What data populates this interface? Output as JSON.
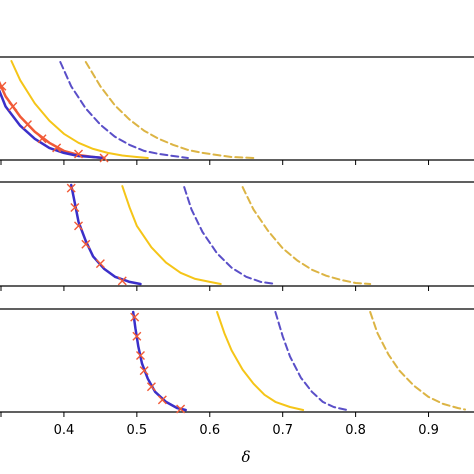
{
  "chart_data": {
    "type": "line",
    "xlabel": "δ",
    "xlim": [
      0.3,
      0.95
    ],
    "x_ticks": [
      "0.4",
      "0.5",
      "0.6",
      "0.7",
      "0.8",
      "0.9"
    ],
    "x_tick_values": [
      0.4,
      0.5,
      0.6,
      0.7,
      0.8,
      0.9
    ],
    "colors": {
      "orange": "#f15a37",
      "blue": "#3b2fc9",
      "yellow": "#f5c518",
      "dashed_blue": "#5a4fc8",
      "dashed_gold": "#dcb444"
    },
    "panels": [
      {
        "ylim": [
          0,
          1
        ],
        "series": [
          {
            "style": "solid",
            "color": "#f15a37",
            "width": 2.5,
            "x": [
              0.3,
              0.31,
              0.32,
              0.34,
              0.36,
              0.38,
              0.4,
              0.42,
              0.44,
              0.455
            ],
            "y": [
              0.97,
              0.78,
              0.62,
              0.42,
              0.27,
              0.16,
              0.08,
              0.04,
              0.02,
              0.01
            ]
          },
          {
            "style": "solid",
            "color": "#3b2fc9",
            "width": 2.5,
            "x": [
              0.3,
              0.31,
              0.32,
              0.34,
              0.36,
              0.38,
              0.4,
              0.42,
              0.44,
              0.455
            ],
            "y": [
              0.93,
              0.7,
              0.52,
              0.33,
              0.2,
              0.11,
              0.06,
              0.03,
              0.02,
              0.01
            ]
          },
          {
            "style": "markers",
            "color": "#f15a37",
            "x": [
              0.3,
              0.315,
              0.33,
              0.35,
              0.37,
              0.39,
              0.42,
              0.455
            ],
            "y": [
              0.95,
              0.72,
              0.52,
              0.34,
              0.2,
              0.11,
              0.05,
              0.01
            ]
          },
          {
            "style": "solid",
            "color": "#f5c518",
            "width": 2,
            "x": [
              0.328,
              0.34,
              0.36,
              0.38,
              0.4,
              0.42,
              0.44,
              0.46,
              0.48,
              0.5,
              0.515
            ],
            "y": [
              0.97,
              0.78,
              0.55,
              0.38,
              0.25,
              0.16,
              0.1,
              0.06,
              0.035,
              0.02,
              0.01
            ]
          },
          {
            "style": "dashed",
            "color": "#5a4fc8",
            "width": 2,
            "x": [
              0.395,
              0.41,
              0.43,
              0.45,
              0.47,
              0.49,
              0.51,
              0.53,
              0.55,
              0.57
            ],
            "y": [
              0.96,
              0.72,
              0.5,
              0.34,
              0.22,
              0.14,
              0.08,
              0.05,
              0.03,
              0.01
            ]
          },
          {
            "style": "dashed",
            "color": "#dcb444",
            "width": 2,
            "x": [
              0.43,
              0.45,
              0.47,
              0.49,
              0.51,
              0.53,
              0.55,
              0.57,
              0.59,
              0.61,
              0.63,
              0.66
            ],
            "y": [
              0.96,
              0.72,
              0.53,
              0.39,
              0.28,
              0.2,
              0.14,
              0.09,
              0.06,
              0.04,
              0.02,
              0.01
            ]
          }
        ]
      },
      {
        "ylim": [
          0,
          1
        ],
        "series": [
          {
            "style": "solid",
            "color": "#3b2fc9",
            "width": 2.5,
            "x": [
              0.41,
              0.415,
              0.42,
              0.43,
              0.44,
              0.455,
              0.47,
              0.49,
              0.505
            ],
            "y": [
              0.98,
              0.8,
              0.62,
              0.43,
              0.28,
              0.16,
              0.08,
              0.03,
              0.01
            ]
          },
          {
            "style": "markers",
            "color": "#f15a37",
            "x": [
              0.41,
              0.415,
              0.42,
              0.43,
              0.45,
              0.48
            ],
            "y": [
              0.95,
              0.76,
              0.58,
              0.4,
              0.21,
              0.04
            ]
          },
          {
            "style": "solid",
            "color": "#f5c518",
            "width": 2,
            "x": [
              0.48,
              0.49,
              0.5,
              0.52,
              0.54,
              0.56,
              0.58,
              0.6,
              0.615
            ],
            "y": [
              0.97,
              0.76,
              0.58,
              0.37,
              0.22,
              0.12,
              0.06,
              0.03,
              0.01
            ]
          },
          {
            "style": "dashed",
            "color": "#5a4fc8",
            "width": 2,
            "x": [
              0.565,
              0.575,
              0.59,
              0.61,
              0.63,
              0.65,
              0.67,
              0.69
            ],
            "y": [
              0.96,
              0.74,
              0.52,
              0.31,
              0.17,
              0.08,
              0.03,
              0.01
            ]
          },
          {
            "style": "dashed",
            "color": "#dcb444",
            "width": 2,
            "x": [
              0.645,
              0.66,
              0.68,
              0.7,
              0.72,
              0.74,
              0.76,
              0.78,
              0.8,
              0.82
            ],
            "y": [
              0.96,
              0.74,
              0.53,
              0.36,
              0.24,
              0.15,
              0.09,
              0.05,
              0.02,
              0.01
            ]
          }
        ]
      },
      {
        "ylim": [
          0,
          1
        ],
        "series": [
          {
            "style": "solid",
            "color": "#3b2fc9",
            "width": 2.5,
            "x": [
              0.495,
              0.498,
              0.502,
              0.507,
              0.515,
              0.525,
              0.54,
              0.555,
              0.567
            ],
            "y": [
              0.98,
              0.82,
              0.64,
              0.47,
              0.32,
              0.19,
              0.09,
              0.03,
              0.01
            ]
          },
          {
            "style": "markers",
            "color": "#f15a37",
            "x": [
              0.497,
              0.5,
              0.505,
              0.51,
              0.52,
              0.535,
              0.56
            ],
            "y": [
              0.93,
              0.74,
              0.55,
              0.4,
              0.24,
              0.11,
              0.02
            ]
          },
          {
            "style": "solid",
            "color": "#f5c518",
            "width": 2,
            "x": [
              0.61,
              0.62,
              0.63,
              0.645,
              0.66,
              0.675,
              0.69,
              0.71,
              0.728
            ],
            "y": [
              0.98,
              0.77,
              0.6,
              0.41,
              0.27,
              0.16,
              0.09,
              0.04,
              0.01
            ]
          },
          {
            "style": "dashed",
            "color": "#5a4fc8",
            "width": 2,
            "x": [
              0.69,
              0.7,
              0.71,
              0.725,
              0.74,
              0.755,
              0.77,
              0.788
            ],
            "y": [
              0.98,
              0.74,
              0.54,
              0.33,
              0.19,
              0.09,
              0.04,
              0.01
            ]
          },
          {
            "style": "dashed",
            "color": "#dcb444",
            "width": 2,
            "x": [
              0.82,
              0.83,
              0.845,
              0.86,
              0.88,
              0.9,
              0.92,
              0.94,
              0.95
            ],
            "y": [
              0.98,
              0.77,
              0.56,
              0.4,
              0.25,
              0.14,
              0.07,
              0.03,
              0.015
            ]
          }
        ]
      }
    ]
  }
}
